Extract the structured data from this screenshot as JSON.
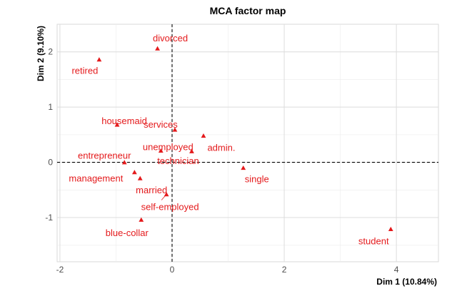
{
  "chart_data": {
    "type": "scatter",
    "title": "MCA factor map",
    "xlabel": "Dim 1 (10.84%)",
    "ylabel": "Dim 2 (9.10%)",
    "xlim": [
      -2.05,
      4.75
    ],
    "ylim": [
      -1.8,
      2.5
    ],
    "xticks": [
      -2,
      0,
      2,
      4
    ],
    "yticks": [
      -1,
      0,
      1,
      2
    ],
    "grid": true,
    "reference_lines": {
      "x": 0,
      "y": 0,
      "style": "dashed"
    },
    "point_color": "#e41a1c",
    "points": [
      {
        "label": "divorced",
        "x": -0.26,
        "y": 2.06
      },
      {
        "label": "retired",
        "x": -1.3,
        "y": 1.86
      },
      {
        "label": "housemaid",
        "x": -0.98,
        "y": 0.68
      },
      {
        "label": "services",
        "x": 0.05,
        "y": 0.59
      },
      {
        "label": "admin.",
        "x": 0.56,
        "y": 0.48
      },
      {
        "label": "unemployed",
        "x": -0.2,
        "y": 0.21
      },
      {
        "label": "technician",
        "x": 0.35,
        "y": 0.2
      },
      {
        "label": "entrepreneur",
        "x": -0.85,
        "y": 0.0
      },
      {
        "label": "management",
        "x": -0.67,
        "y": -0.18
      },
      {
        "label": "single",
        "x": 1.27,
        "y": -0.1
      },
      {
        "label": "married",
        "x": -0.57,
        "y": -0.29
      },
      {
        "label": "self-employed",
        "x": -0.1,
        "y": -0.58
      },
      {
        "label": "blue-collar",
        "x": -0.55,
        "y": -1.04
      },
      {
        "label": "student",
        "x": 3.9,
        "y": -1.21
      }
    ]
  }
}
